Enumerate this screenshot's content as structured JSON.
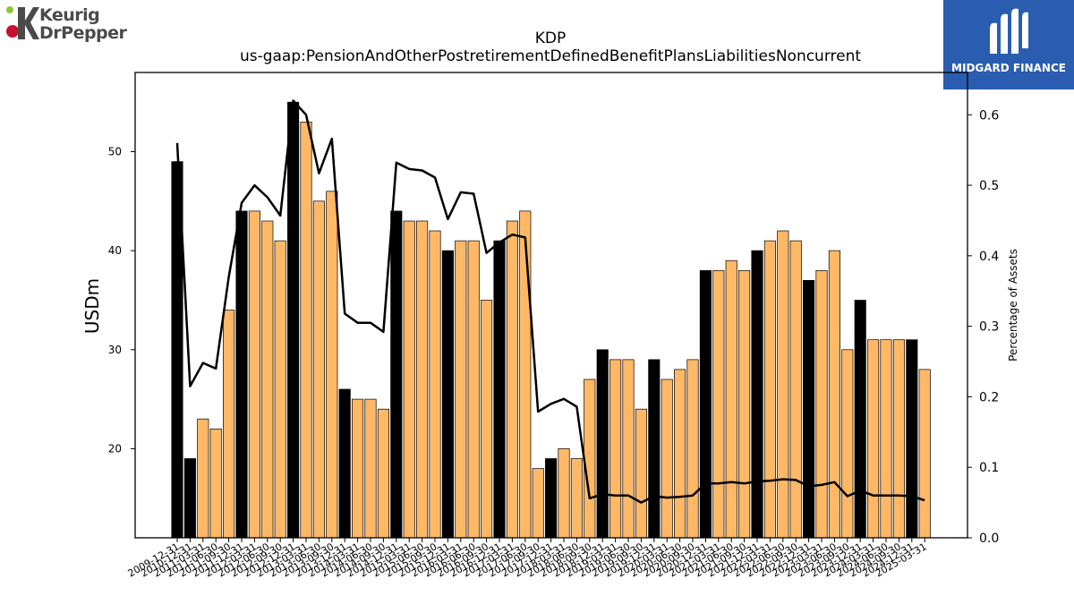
{
  "logos": {
    "left_line1": "Keurig",
    "left_line2": "DrPepper",
    "right_text": "MIDGARD FINANCE"
  },
  "colors": {
    "highlight_bar": "#000000",
    "normal_bar": "#ffb866",
    "line": "#000000",
    "right_logo_bg": "#2a5db0"
  },
  "chart_data": {
    "type": "bar",
    "title": "KDP",
    "subtitle": "us-gaap:PensionAndOtherPostretirementDefinedBenefitPlansLiabilitiesNoncurrent",
    "ylabel": "USDm",
    "y2label": "Percentage of Assets",
    "ylim": [
      11,
      58
    ],
    "y2lim": [
      0,
      0.66
    ],
    "yticks": [
      20,
      30,
      40,
      50
    ],
    "y2ticks": [
      "0.0",
      "0.1",
      "0.2",
      "0.3",
      "0.4",
      "0.5",
      "0.6"
    ],
    "categories": [
      "2009-12-31",
      "2010-12-31",
      "2011-03-31",
      "2011-06-30",
      "2011-09-30",
      "2011-12-31",
      "2012-03-31",
      "2012-06-30",
      "2012-09-30",
      "2012-12-31",
      "2013-03-31",
      "2013-06-30",
      "2013-09-30",
      "2013-12-31",
      "2014-03-31",
      "2014-06-30",
      "2014-09-30",
      "2014-12-31",
      "2015-03-31",
      "2015-06-30",
      "2015-09-30",
      "2015-12-31",
      "2016-03-31",
      "2016-06-30",
      "2016-09-30",
      "2016-12-31",
      "2017-03-31",
      "2017-06-30",
      "2017-09-30",
      "2017-12-31",
      "2018-03-31",
      "2018-06-30",
      "2018-09-30",
      "2018-12-31",
      "2019-03-31",
      "2019-06-30",
      "2019-09-30",
      "2019-12-31",
      "2020-03-31",
      "2020-06-30",
      "2020-09-30",
      "2020-12-31",
      "2021-03-31",
      "2021-06-30",
      "2021-09-30",
      "2021-12-31",
      "2022-03-31",
      "2022-06-30",
      "2022-09-30",
      "2022-12-31",
      "2023-03-31",
      "2023-06-30",
      "2023-09-30",
      "2023-12-31",
      "2024-03-31",
      "2024-06-30",
      "2024-09-30",
      "2024-12-31",
      "2025-03-31"
    ],
    "series": [
      {
        "kind": "bar",
        "values": [
          49,
          19,
          23,
          22,
          34,
          44,
          44,
          43,
          41,
          55,
          53,
          45,
          46,
          26,
          25,
          25,
          24,
          44,
          43,
          43,
          42,
          40,
          41,
          41,
          35,
          41,
          43,
          44,
          18,
          19,
          20,
          19,
          27,
          30,
          29,
          29,
          24,
          29,
          27,
          28,
          29,
          38,
          38,
          39,
          38,
          40,
          41,
          42,
          41,
          37,
          38,
          40,
          30,
          35,
          31,
          31,
          31,
          31,
          28
        ],
        "highlight": [
          true,
          true,
          false,
          false,
          false,
          true,
          false,
          false,
          false,
          true,
          false,
          false,
          false,
          true,
          false,
          false,
          false,
          true,
          false,
          false,
          false,
          true,
          false,
          false,
          false,
          true,
          false,
          false,
          false,
          true,
          false,
          false,
          false,
          true,
          false,
          false,
          false,
          true,
          false,
          false,
          false,
          true,
          false,
          false,
          false,
          true,
          false,
          false,
          false,
          true,
          false,
          false,
          false,
          true,
          false,
          false,
          false,
          true,
          false
        ]
      },
      {
        "kind": "line",
        "axis": "right",
        "values": [
          0.56,
          0.215,
          0.248,
          0.24,
          0.37,
          0.475,
          0.5,
          0.483,
          0.457,
          0.62,
          0.6,
          0.517,
          0.566,
          0.318,
          0.305,
          0.305,
          0.292,
          0.532,
          0.523,
          0.521,
          0.511,
          0.452,
          0.49,
          0.488,
          0.404,
          0.419,
          0.43,
          0.426,
          0.179,
          0.19,
          0.197,
          0.186,
          0.056,
          0.062,
          0.06,
          0.06,
          0.05,
          0.059,
          0.057,
          0.058,
          0.06,
          0.077,
          0.077,
          0.079,
          0.077,
          0.08,
          0.081,
          0.083,
          0.082,
          0.073,
          0.075,
          0.079,
          0.059,
          0.067,
          0.06,
          0.06,
          0.06,
          0.059,
          0.053
        ]
      }
    ]
  }
}
